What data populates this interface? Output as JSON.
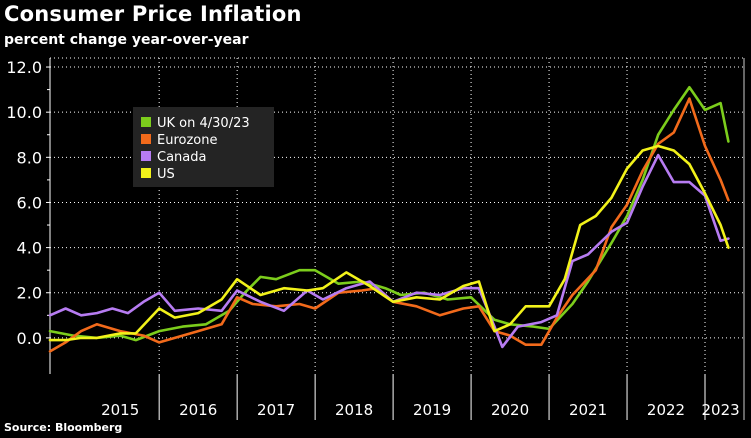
{
  "header": {
    "title": "Consumer Price Inflation",
    "subtitle": "percent change year-over-year"
  },
  "footer": {
    "source": "Source: Bloomberg"
  },
  "chart_data": {
    "type": "line",
    "ylim": [
      -1.6,
      12.4
    ],
    "xlim": [
      2014.6,
      2023.5
    ],
    "yticks": [
      0.0,
      2.0,
      4.0,
      6.0,
      8.0,
      10.0,
      12.0
    ],
    "ytick_labels": [
      "0.0",
      "2.0",
      "4.0",
      "6.0",
      "8.0",
      "10.0",
      "12.0"
    ],
    "xtick_labels": [
      {
        "label": "2015",
        "x": 2015.5
      },
      {
        "label": "2016",
        "x": 2016.5
      },
      {
        "label": "2017",
        "x": 2017.5
      },
      {
        "label": "2018",
        "x": 2018.5
      },
      {
        "label": "2019",
        "x": 2019.5
      },
      {
        "label": "2020",
        "x": 2020.5
      },
      {
        "label": "2021",
        "x": 2021.5
      },
      {
        "label": "2022",
        "x": 2022.5
      },
      {
        "label": "2023",
        "x": 2023.2
      }
    ],
    "year_boundaries": [
      2016,
      2017,
      2018,
      2019,
      2020,
      2021,
      2022,
      2023
    ],
    "grid": true,
    "legend_position": "top-left",
    "legend_colors": {
      "uk": "#7ccd1c",
      "eurozone": "#f26a1b",
      "canada": "#b77cf2",
      "us": "#f2f21a"
    },
    "series": [
      {
        "name": "UK  on 4/30/23",
        "color": "#7ccd1c",
        "x": [
          2014.6,
          2014.9,
          2015.2,
          2015.5,
          2015.7,
          2016.0,
          2016.3,
          2016.6,
          2016.9,
          2017.1,
          2017.3,
          2017.5,
          2017.8,
          2018.0,
          2018.3,
          2018.6,
          2018.9,
          2019.1,
          2019.4,
          2019.7,
          2020.0,
          2020.3,
          2020.5,
          2020.8,
          2021.0,
          2021.3,
          2021.5,
          2021.8,
          2022.0,
          2022.2,
          2022.4,
          2022.6,
          2022.8,
          2023.0,
          2023.2,
          2023.3
        ],
        "y": [
          0.3,
          0.1,
          0.0,
          0.1,
          -0.1,
          0.3,
          0.5,
          0.6,
          1.2,
          2.0,
          2.7,
          2.6,
          3.0,
          3.0,
          2.4,
          2.5,
          2.2,
          1.9,
          2.0,
          1.7,
          1.8,
          0.8,
          0.6,
          0.5,
          0.4,
          1.5,
          2.5,
          4.2,
          5.4,
          7.0,
          9.0,
          10.1,
          11.1,
          10.1,
          10.4,
          8.7
        ]
      },
      {
        "name": "Eurozone",
        "color": "#f26a1b",
        "x": [
          2014.6,
          2014.8,
          2015.0,
          2015.2,
          2015.5,
          2015.8,
          2016.0,
          2016.2,
          2016.5,
          2016.8,
          2017.0,
          2017.2,
          2017.5,
          2017.8,
          2018.0,
          2018.3,
          2018.6,
          2018.8,
          2019.0,
          2019.3,
          2019.6,
          2019.9,
          2020.1,
          2020.3,
          2020.5,
          2020.7,
          2020.9,
          2021.1,
          2021.3,
          2021.6,
          2021.8,
          2022.0,
          2022.2,
          2022.4,
          2022.6,
          2022.8,
          2023.0,
          2023.2,
          2023.3
        ],
        "y": [
          -0.6,
          -0.2,
          0.3,
          0.6,
          0.3,
          0.1,
          -0.2,
          0.0,
          0.3,
          0.6,
          1.8,
          1.5,
          1.4,
          1.5,
          1.3,
          2.0,
          2.1,
          2.2,
          1.6,
          1.4,
          1.0,
          1.3,
          1.4,
          0.3,
          0.1,
          -0.3,
          -0.3,
          0.9,
          1.9,
          3.0,
          4.9,
          5.9,
          7.4,
          8.6,
          9.1,
          10.6,
          8.5,
          7.0,
          6.1
        ]
      },
      {
        "name": "Canada",
        "color": "#b77cf2",
        "x": [
          2014.6,
          2014.8,
          2015.0,
          2015.2,
          2015.4,
          2015.6,
          2015.8,
          2016.0,
          2016.2,
          2016.5,
          2016.8,
          2017.0,
          2017.3,
          2017.6,
          2017.9,
          2018.1,
          2018.4,
          2018.7,
          2019.0,
          2019.3,
          2019.6,
          2019.9,
          2020.1,
          2020.3,
          2020.4,
          2020.6,
          2020.9,
          2021.1,
          2021.3,
          2021.5,
          2021.8,
          2022.0,
          2022.2,
          2022.4,
          2022.6,
          2022.8,
          2023.0,
          2023.2,
          2023.3
        ],
        "y": [
          1.0,
          1.3,
          1.0,
          1.1,
          1.3,
          1.1,
          1.6,
          2.0,
          1.2,
          1.3,
          1.2,
          2.1,
          1.6,
          1.2,
          2.1,
          1.7,
          2.2,
          2.5,
          1.6,
          2.0,
          1.9,
          2.2,
          2.2,
          0.5,
          -0.4,
          0.5,
          0.7,
          1.0,
          3.4,
          3.7,
          4.7,
          5.1,
          6.7,
          8.1,
          6.9,
          6.9,
          6.3,
          4.3,
          4.4
        ]
      },
      {
        "name": "US",
        "color": "#f2f21a",
        "x": [
          2014.6,
          2014.8,
          2015.0,
          2015.2,
          2015.5,
          2015.7,
          2016.0,
          2016.2,
          2016.5,
          2016.8,
          2017.0,
          2017.3,
          2017.6,
          2017.9,
          2018.1,
          2018.4,
          2018.7,
          2019.0,
          2019.3,
          2019.6,
          2019.9,
          2020.1,
          2020.3,
          2020.5,
          2020.7,
          2021.0,
          2021.2,
          2021.4,
          2021.6,
          2021.8,
          2022.0,
          2022.2,
          2022.4,
          2022.6,
          2022.8,
          2023.0,
          2023.2,
          2023.3
        ],
        "y": [
          -0.1,
          -0.1,
          0.0,
          0.0,
          0.2,
          0.2,
          1.3,
          0.9,
          1.1,
          1.7,
          2.6,
          1.9,
          2.2,
          2.1,
          2.2,
          2.9,
          2.3,
          1.6,
          1.8,
          1.7,
          2.3,
          2.5,
          0.3,
          0.6,
          1.4,
          1.4,
          2.6,
          5.0,
          5.4,
          6.2,
          7.5,
          8.3,
          8.5,
          8.3,
          7.7,
          6.4,
          5.0,
          4.0
        ]
      }
    ]
  }
}
